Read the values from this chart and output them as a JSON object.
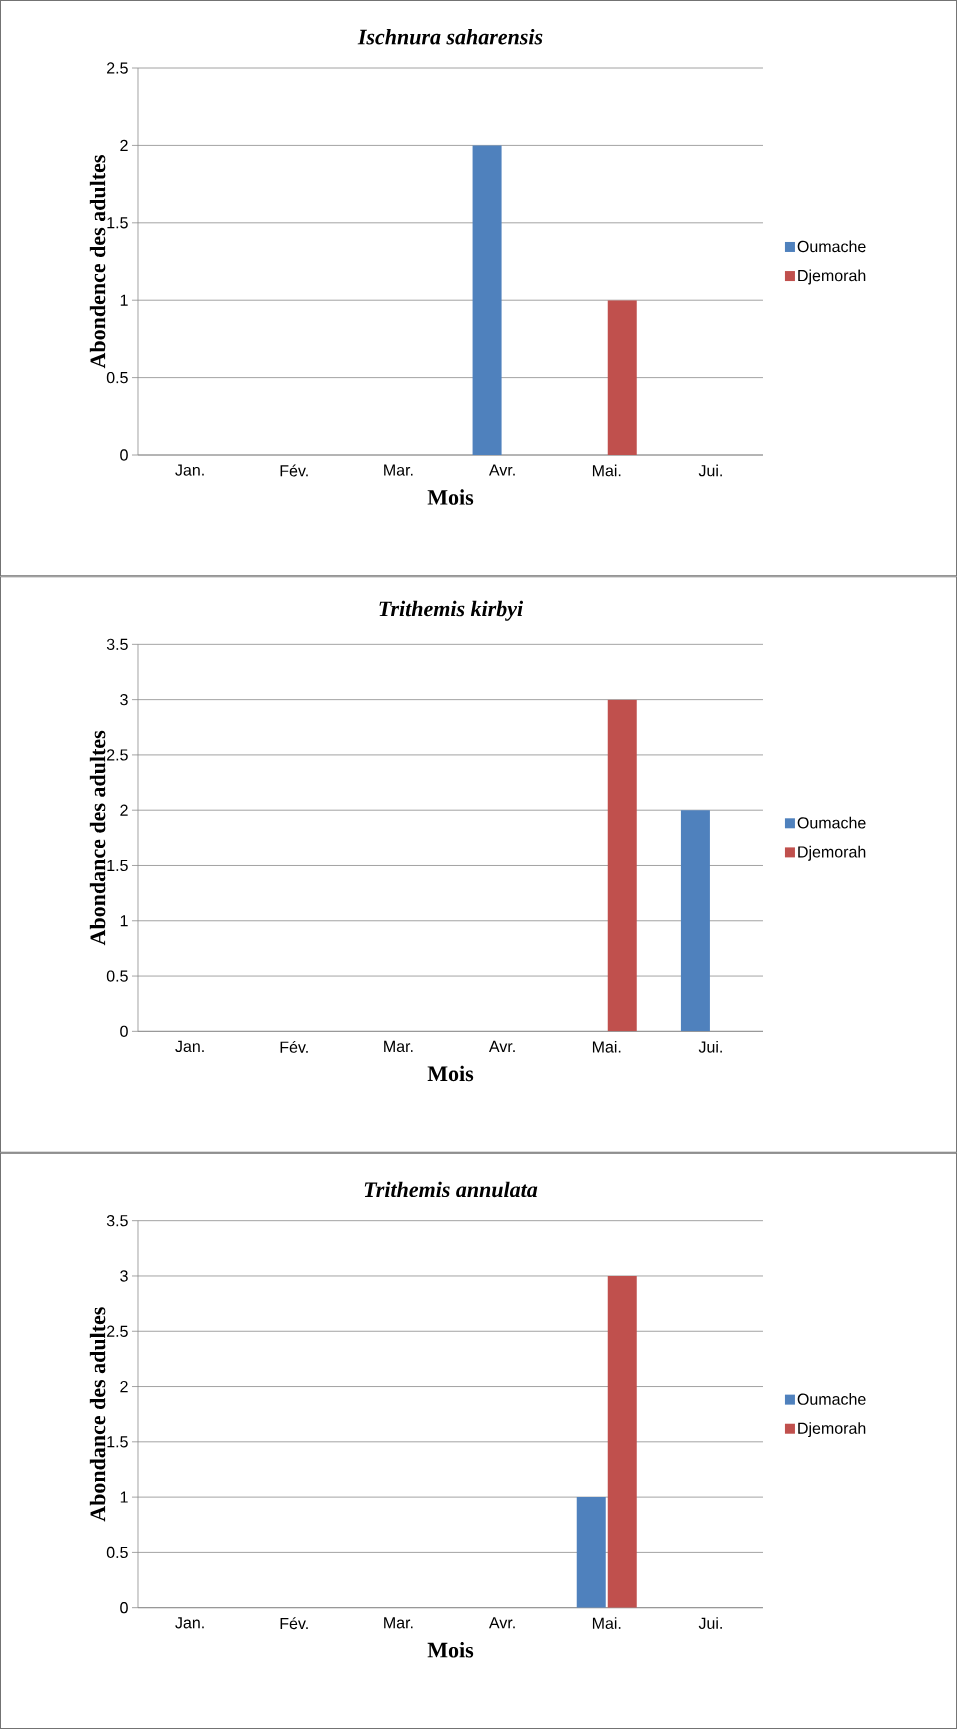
{
  "chart_data": [
    {
      "type": "bar",
      "title": "Ischnura saharensis",
      "xlabel": "Mois",
      "ylabel": "Abondence des adultes",
      "categories": [
        "Jan.",
        "Fév.",
        "Mar.",
        "Avr.",
        "Mai.",
        "Jui."
      ],
      "series": [
        {
          "name": "Oumache",
          "color": "#4f81bd",
          "values": [
            0,
            0,
            0,
            2,
            0,
            0
          ]
        },
        {
          "name": "Djemorah",
          "color": "#c0504d",
          "values": [
            0,
            0,
            0,
            0,
            1,
            0
          ]
        }
      ],
      "ylim": [
        0,
        2.5
      ],
      "yticks": [
        0,
        0.5,
        1,
        1.5,
        2,
        2.5
      ],
      "grid": "y",
      "legend": "right"
    },
    {
      "type": "bar",
      "title": "Trithemis kirbyi",
      "xlabel": "Mois",
      "ylabel": "Abondance des adultes",
      "categories": [
        "Jan.",
        "Fév.",
        "Mar.",
        "Avr.",
        "Mai.",
        "Jui."
      ],
      "series": [
        {
          "name": "Oumache",
          "color": "#4f81bd",
          "values": [
            0,
            0,
            0,
            0,
            0,
            2
          ]
        },
        {
          "name": "Djemorah",
          "color": "#c0504d",
          "values": [
            0,
            0,
            0,
            0,
            3,
            0
          ]
        }
      ],
      "ylim": [
        0,
        3.5
      ],
      "yticks": [
        0,
        0.5,
        1,
        1.5,
        2,
        2.5,
        3,
        3.5
      ],
      "grid": "y",
      "legend": "right"
    },
    {
      "type": "bar",
      "title": "Trithemis annulata",
      "xlabel": "Mois",
      "ylabel": "Abondance des adultes",
      "categories": [
        "Jan.",
        "Fév.",
        "Mar.",
        "Avr.",
        "Mai.",
        "Jui."
      ],
      "series": [
        {
          "name": "Oumache",
          "color": "#4f81bd",
          "values": [
            0,
            0,
            0,
            0,
            1,
            0
          ]
        },
        {
          "name": "Djemorah",
          "color": "#c0504d",
          "values": [
            0,
            0,
            0,
            0,
            3,
            0
          ]
        }
      ],
      "ylim": [
        0,
        3.5
      ],
      "yticks": [
        0,
        0.5,
        1,
        1.5,
        2,
        2.5,
        3,
        3.5
      ],
      "grid": "y",
      "legend": "right"
    }
  ]
}
